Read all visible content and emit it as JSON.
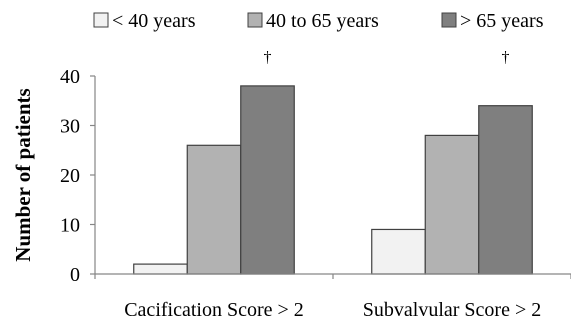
{
  "chart_data": {
    "type": "bar",
    "title": "",
    "xlabel": "",
    "ylabel": "Number of patients",
    "ylim": [
      0,
      40
    ],
    "yticks": [
      0,
      10,
      20,
      30,
      40
    ],
    "grid": false,
    "legend_position": "top",
    "categories": [
      "Cacification Score > 2",
      "Subvalvular Score > 2"
    ],
    "series": [
      {
        "name": "< 40 years",
        "values": [
          2,
          9
        ],
        "color": "#f2f2f2"
      },
      {
        "name": "40 to 65 years",
        "values": [
          26,
          28
        ],
        "color": "#b2b2b2"
      },
      {
        "name": "> 65 years",
        "values": [
          38,
          34
        ],
        "color": "#7f7f7f"
      }
    ],
    "annotations": [
      {
        "text": "†",
        "category": "Cacification Score > 2"
      },
      {
        "text": "†",
        "category": "Subvalvular Score > 2"
      }
    ]
  }
}
